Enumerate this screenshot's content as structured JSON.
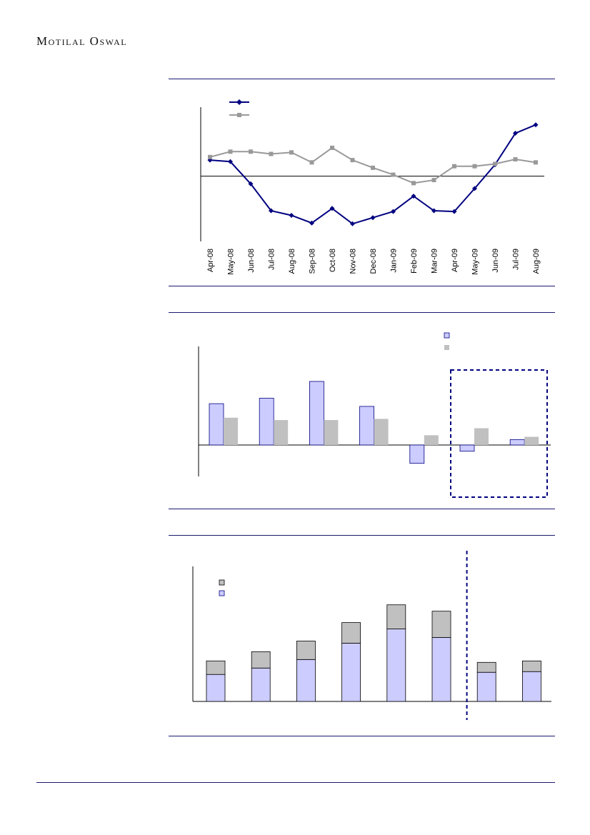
{
  "header": {
    "brand": "Motilal Oswal"
  },
  "colors": {
    "navy": "#000080",
    "gray": "#999999",
    "lavender": "#ccccff",
    "rule": "#1a1a6e"
  },
  "chart_data": [
    {
      "type": "line",
      "x": [
        "Apr-08",
        "May-08",
        "Jun-08",
        "Jul-08",
        "Aug-08",
        "Sep-08",
        "Oct-08",
        "Nov-08",
        "Dec-08",
        "Jan-09",
        "Feb-09",
        "Mar-09",
        "Apr-09",
        "May-09",
        "Jun-09",
        "Jul-09",
        "Aug-09"
      ],
      "series": [
        {
          "color": "#000080",
          "marker": "diamond",
          "values": [
            2.1,
            1.9,
            -1.0,
            -4.5,
            -5.1,
            -6.1,
            -4.2,
            -6.2,
            -5.4,
            -4.6,
            -2.6,
            -4.5,
            -4.6,
            -1.6,
            1.5,
            5.6,
            6.7
          ]
        },
        {
          "color": "#999999",
          "marker": "square",
          "values": [
            2.5,
            3.2,
            3.2,
            2.9,
            3.1,
            1.8,
            3.7,
            2.1,
            1.1,
            0.2,
            -0.9,
            -0.5,
            1.3,
            1.3,
            1.6,
            2.2,
            1.8
          ]
        }
      ],
      "ylim": [
        -8.5,
        9
      ]
    },
    {
      "type": "bar",
      "categories": [
        "",
        "",
        "",
        "",
        "",
        "",
        ""
      ],
      "series": [
        {
          "color": "#ccccff",
          "values": [
            10.6,
            12.0,
            16.3,
            9.9,
            -4.7,
            -1.6,
            1.4
          ]
        },
        {
          "color": "#c0c0c0",
          "values": [
            7.0,
            6.4,
            6.4,
            6.7,
            2.5,
            4.3,
            2.1
          ]
        }
      ],
      "ylim": [
        -8,
        25
      ],
      "highlight": {
        "from_index": 5,
        "to_index": 6
      }
    },
    {
      "type": "bar",
      "stacked": true,
      "categories": [
        "",
        "",
        "",
        "",
        "",
        "",
        "",
        ""
      ],
      "series": [
        {
          "color": "#ccccff",
          "values": [
            38,
            47,
            59,
            82,
            102,
            90,
            41,
            42
          ]
        },
        {
          "color": "#c0c0c0",
          "values": [
            19,
            23,
            26,
            29,
            34,
            37,
            14,
            15
          ]
        }
      ],
      "ylim": [
        0,
        190
      ],
      "divider_after_index": 5
    }
  ]
}
